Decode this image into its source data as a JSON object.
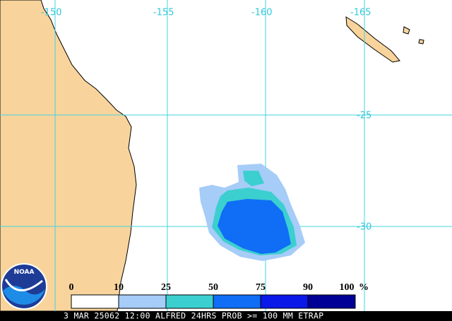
{
  "map": {
    "lon_labels": [
      "-150",
      "-155",
      "-160",
      "-165"
    ],
    "lat_labels": [
      "-25",
      "-30"
    ],
    "legend": {
      "labels": [
        "0",
        "10",
        "25",
        "50",
        "75",
        "90",
        "100"
      ],
      "unit": "%",
      "colors": [
        "#ffffff",
        "#a6ccf8",
        "#3ccfd0",
        "#0f6ef5",
        "#0a18e8",
        "#000096"
      ]
    },
    "logo": "NOAA",
    "footer": "3 MAR 25062 12:00 ALFRED 24HRS PROB >= 100 MM ETRAP"
  }
}
